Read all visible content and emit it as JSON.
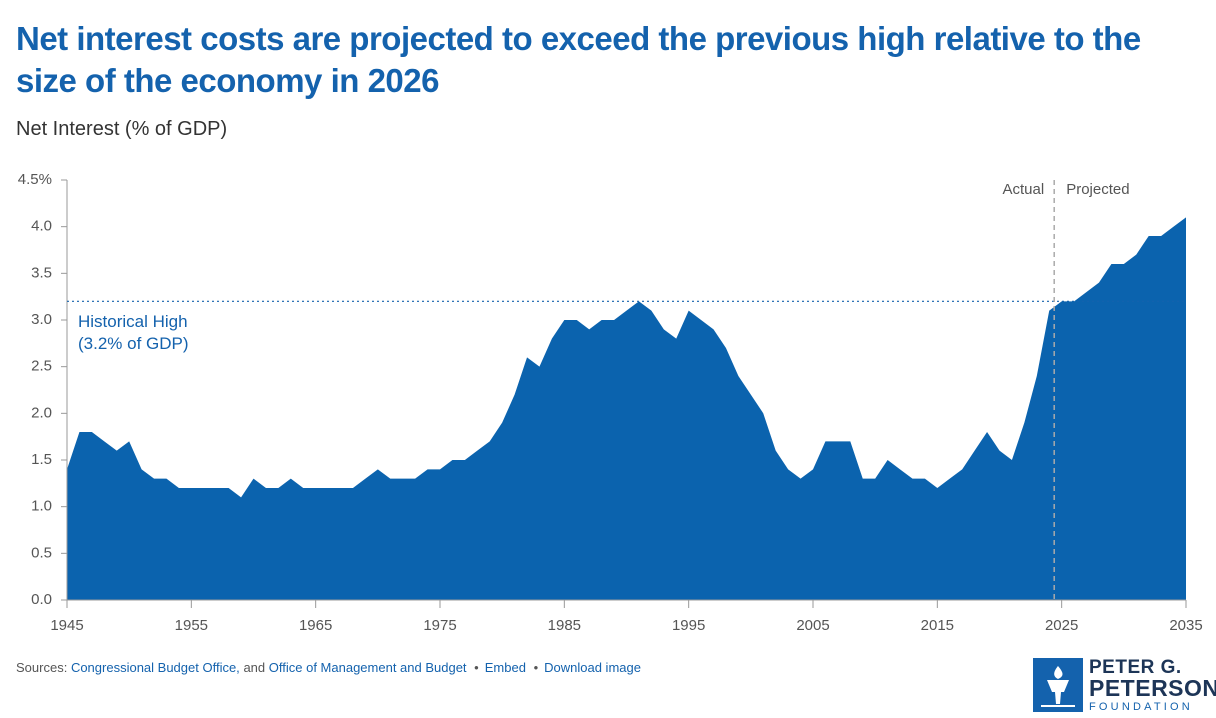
{
  "chart_data": {
    "type": "area",
    "title": "Net interest costs are projected to exceed the previous high relative to the size of the economy in 2026",
    "subtitle": "Net Interest (% of GDP)",
    "x": [
      1945,
      1946,
      1947,
      1948,
      1949,
      1950,
      1951,
      1952,
      1953,
      1954,
      1955,
      1956,
      1957,
      1958,
      1959,
      1960,
      1961,
      1962,
      1963,
      1964,
      1965,
      1966,
      1967,
      1968,
      1969,
      1970,
      1971,
      1972,
      1973,
      1974,
      1975,
      1976,
      1977,
      1978,
      1979,
      1980,
      1981,
      1982,
      1983,
      1984,
      1985,
      1986,
      1987,
      1988,
      1989,
      1990,
      1991,
      1992,
      1993,
      1994,
      1995,
      1996,
      1997,
      1998,
      1999,
      2000,
      2001,
      2002,
      2003,
      2004,
      2005,
      2006,
      2007,
      2008,
      2009,
      2010,
      2011,
      2012,
      2013,
      2014,
      2015,
      2016,
      2017,
      2018,
      2019,
      2020,
      2021,
      2022,
      2023,
      2024,
      2025,
      2026,
      2027,
      2028,
      2029,
      2030,
      2031,
      2032,
      2033,
      2034,
      2035
    ],
    "values": [
      1.4,
      1.8,
      1.8,
      1.7,
      1.6,
      1.7,
      1.4,
      1.3,
      1.3,
      1.2,
      1.2,
      1.2,
      1.2,
      1.2,
      1.1,
      1.3,
      1.2,
      1.2,
      1.3,
      1.2,
      1.2,
      1.2,
      1.2,
      1.2,
      1.3,
      1.4,
      1.3,
      1.3,
      1.3,
      1.4,
      1.4,
      1.5,
      1.5,
      1.6,
      1.7,
      1.9,
      2.2,
      2.6,
      2.5,
      2.8,
      3.0,
      3.0,
      2.9,
      3.0,
      3.0,
      3.1,
      3.2,
      3.1,
      2.9,
      2.8,
      3.1,
      3.0,
      2.9,
      2.7,
      2.4,
      2.2,
      2.0,
      1.6,
      1.4,
      1.3,
      1.4,
      1.7,
      1.7,
      1.7,
      1.3,
      1.3,
      1.5,
      1.4,
      1.3,
      1.3,
      1.2,
      1.3,
      1.4,
      1.6,
      1.8,
      1.6,
      1.5,
      1.9,
      2.4,
      3.1,
      3.2,
      3.2,
      3.3,
      3.4,
      3.6,
      3.6,
      3.7,
      3.9,
      3.9,
      4.0,
      4.1
    ],
    "color": "#0b63ae",
    "xlim": [
      1945,
      2035
    ],
    "xticks": [
      1945,
      1955,
      1965,
      1975,
      1985,
      1995,
      2005,
      2015,
      2025,
      2035
    ],
    "ylim": [
      0,
      4.5
    ],
    "yticks": [
      {
        "value": 0,
        "label": "0.0"
      },
      0.5,
      {
        "value": 1,
        "label": "1.0"
      },
      1.5,
      {
        "value": 2,
        "label": "2.0"
      },
      2.5,
      {
        "value": 3,
        "label": "3.0"
      },
      3.5,
      {
        "value": 4,
        "label": "4.0"
      },
      {
        "value": 4.5,
        "label": "4.5%"
      }
    ],
    "reference_line": {
      "value": 3.2,
      "label": "Historical High",
      "sublabel": "(3.2% of GDP)",
      "color": "#1462ad"
    },
    "divider": {
      "x": 2024.4,
      "left_label": "Actual",
      "right_label": "Projected"
    }
  },
  "footer": {
    "label": "Sources:",
    "sources": [
      "Congressional Budget Office,",
      "Office of Management and Budget"
    ],
    "joiner": "and",
    "actions": [
      "Embed",
      "Download image"
    ]
  },
  "logo": {
    "line1": "PETER G.",
    "line2": "PETERSON",
    "line3": "FOUNDATION"
  }
}
